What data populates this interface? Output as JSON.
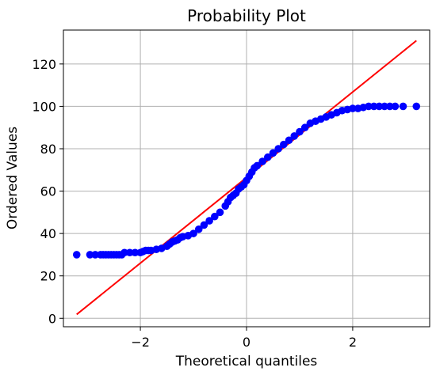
{
  "chart_data": {
    "type": "scatter",
    "title": "Probability Plot",
    "xlabel": "Theoretical quantiles",
    "ylabel": "Ordered Values",
    "xlim": [
      -3.45,
      3.45
    ],
    "ylim": [
      -4,
      136
    ],
    "x_ticks": [
      -2,
      0,
      2
    ],
    "x_tick_labels": [
      "−2",
      "0",
      "2"
    ],
    "y_ticks": [
      0,
      20,
      40,
      60,
      80,
      100,
      120
    ],
    "y_tick_labels": [
      "0",
      "20",
      "40",
      "60",
      "80",
      "100",
      "120"
    ],
    "grid": true,
    "colors": {
      "points": "#0000ff",
      "fit_line": "#ff0000",
      "grid": "#b0b0b0"
    },
    "fit_line": {
      "x": [
        -3.2,
        3.2
      ],
      "y": [
        1.8,
        131.0
      ]
    },
    "series": [
      {
        "points": [
          [
            -3.2,
            30
          ],
          [
            -2.95,
            30
          ],
          [
            -2.85,
            30
          ],
          [
            -2.75,
            30
          ],
          [
            -2.7,
            30
          ],
          [
            -2.65,
            30
          ],
          [
            -2.6,
            30
          ],
          [
            -2.55,
            30
          ],
          [
            -2.5,
            30
          ],
          [
            -2.45,
            30
          ],
          [
            -2.4,
            30
          ],
          [
            -2.35,
            30
          ],
          [
            -2.3,
            31
          ],
          [
            -2.2,
            31
          ],
          [
            -2.1,
            31
          ],
          [
            -2.0,
            31
          ],
          [
            -1.95,
            31.5
          ],
          [
            -1.9,
            32
          ],
          [
            -1.85,
            32
          ],
          [
            -1.8,
            32
          ],
          [
            -1.7,
            32.5
          ],
          [
            -1.6,
            33
          ],
          [
            -1.5,
            34
          ],
          [
            -1.45,
            35
          ],
          [
            -1.4,
            36
          ],
          [
            -1.35,
            36.5
          ],
          [
            -1.3,
            37
          ],
          [
            -1.25,
            38
          ],
          [
            -1.2,
            38.5
          ],
          [
            -1.1,
            39
          ],
          [
            -1.0,
            40
          ],
          [
            -0.9,
            42
          ],
          [
            -0.8,
            44
          ],
          [
            -0.7,
            46
          ],
          [
            -0.6,
            48
          ],
          [
            -0.5,
            50
          ],
          [
            -0.4,
            53
          ],
          [
            -0.35,
            55
          ],
          [
            -0.3,
            57
          ],
          [
            -0.25,
            58
          ],
          [
            -0.2,
            59
          ],
          [
            -0.15,
            61
          ],
          [
            -0.1,
            62
          ],
          [
            -0.05,
            63
          ],
          [
            0.0,
            65
          ],
          [
            0.05,
            67
          ],
          [
            0.1,
            69
          ],
          [
            0.15,
            71
          ],
          [
            0.2,
            72
          ],
          [
            0.3,
            74
          ],
          [
            0.4,
            76
          ],
          [
            0.5,
            78
          ],
          [
            0.6,
            80
          ],
          [
            0.7,
            82
          ],
          [
            0.8,
            84
          ],
          [
            0.9,
            86
          ],
          [
            1.0,
            88
          ],
          [
            1.1,
            90
          ],
          [
            1.2,
            92
          ],
          [
            1.3,
            93
          ],
          [
            1.4,
            94
          ],
          [
            1.5,
            95
          ],
          [
            1.6,
            96
          ],
          [
            1.7,
            97
          ],
          [
            1.8,
            98
          ],
          [
            1.9,
            98.5
          ],
          [
            2.0,
            99
          ],
          [
            2.1,
            99
          ],
          [
            2.2,
            99.5
          ],
          [
            2.3,
            100
          ],
          [
            2.4,
            100
          ],
          [
            2.5,
            100
          ],
          [
            2.6,
            100
          ],
          [
            2.7,
            100
          ],
          [
            2.8,
            100
          ],
          [
            2.95,
            100
          ],
          [
            3.2,
            100
          ]
        ]
      }
    ]
  }
}
